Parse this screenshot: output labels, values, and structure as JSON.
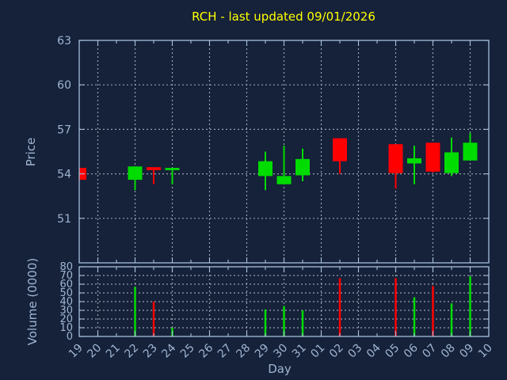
{
  "title": "RCH - last updated 09/01/2026",
  "styles": {
    "background": "#16213A",
    "title_color": "#FFFF00",
    "axis_border_color": "#A6BFDB",
    "tick_label_color": "#9FB6D2",
    "grid_color": "#A6AEB9",
    "up_color": "#00DC00",
    "down_color": "#FF0000"
  },
  "chart_data": {
    "type": "candlestick",
    "title": "RCH - last updated 09/01/2026",
    "xlabel": "Day",
    "x_categories": [
      "19",
      "20",
      "21",
      "22",
      "23",
      "24",
      "25",
      "26",
      "27",
      "28",
      "29",
      "30",
      "31",
      "01",
      "02",
      "03",
      "04",
      "05",
      "06",
      "07",
      "08",
      "09",
      "10"
    ],
    "grid_days": [
      "20",
      "22",
      "24",
      "26",
      "28",
      "30",
      "01",
      "03",
      "05",
      "07",
      "09"
    ],
    "legend": "none",
    "price_panel": {
      "ylabel": "Price",
      "ylim": [
        48,
        63
      ],
      "yticks": [
        51,
        54,
        57,
        60,
        63
      ],
      "candles": [
        {
          "day": "19",
          "open": 54.4,
          "high": 54.4,
          "low": 53.6,
          "close": 53.6
        },
        {
          "day": "22",
          "open": 53.6,
          "high": 54.5,
          "low": 52.9,
          "close": 54.5
        },
        {
          "day": "23",
          "open": 54.45,
          "high": 54.45,
          "low": 53.3,
          "close": 54.25
        },
        {
          "day": "24",
          "open": 54.25,
          "high": 54.4,
          "low": 53.3,
          "close": 54.4
        },
        {
          "day": "29",
          "open": 53.85,
          "high": 55.5,
          "low": 52.9,
          "close": 54.85
        },
        {
          "day": "30",
          "open": 53.3,
          "high": 55.9,
          "low": 53.3,
          "close": 53.85
        },
        {
          "day": "31",
          "open": 53.9,
          "high": 55.7,
          "low": 53.5,
          "close": 55.0
        },
        {
          "day": "02",
          "open": 56.4,
          "high": 56.4,
          "low": 54.0,
          "close": 54.85
        },
        {
          "day": "05",
          "open": 56.0,
          "high": 56.0,
          "low": 53.0,
          "close": 54.05
        },
        {
          "day": "06",
          "open": 54.7,
          "high": 55.9,
          "low": 53.3,
          "close": 55.05
        },
        {
          "day": "07",
          "open": 56.1,
          "high": 56.1,
          "low": 54.1,
          "close": 54.15
        },
        {
          "day": "08",
          "open": 54.05,
          "high": 56.45,
          "low": 53.85,
          "close": 55.45
        },
        {
          "day": "09",
          "open": 54.9,
          "high": 56.75,
          "low": 54.9,
          "close": 56.1
        }
      ]
    },
    "volume_panel": {
      "ylabel": "Volume (0000)",
      "ylim": [
        0,
        80
      ],
      "yticks": [
        0,
        10,
        20,
        30,
        40,
        50,
        60,
        70,
        80
      ],
      "bars": [
        {
          "day": "22",
          "value": 57,
          "direction": "up"
        },
        {
          "day": "23",
          "value": 40,
          "direction": "down"
        },
        {
          "day": "24",
          "value": 10,
          "direction": "up"
        },
        {
          "day": "29",
          "value": 31,
          "direction": "up"
        },
        {
          "day": "30",
          "value": 35,
          "direction": "up"
        },
        {
          "day": "31",
          "value": 30,
          "direction": "up"
        },
        {
          "day": "02",
          "value": 67,
          "direction": "down"
        },
        {
          "day": "05",
          "value": 67,
          "direction": "down"
        },
        {
          "day": "06",
          "value": 45,
          "direction": "up"
        },
        {
          "day": "07",
          "value": 58,
          "direction": "down"
        },
        {
          "day": "08",
          "value": 38,
          "direction": "up"
        },
        {
          "day": "09",
          "value": 69,
          "direction": "up"
        }
      ]
    }
  }
}
